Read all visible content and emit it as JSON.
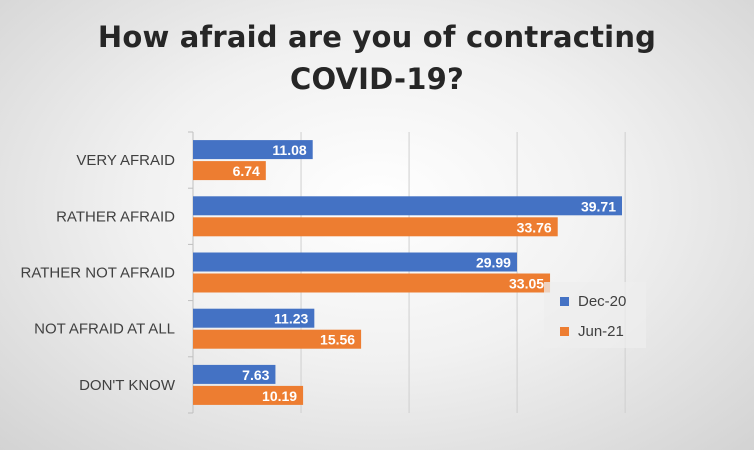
{
  "chart_data": {
    "type": "bar",
    "orientation": "horizontal",
    "title": [
      "How afraid are you of contracting",
      "COVID-19?"
    ],
    "categories": [
      "VERY AFRAID",
      "RATHER AFRAID",
      "RATHER NOT AFRAID",
      "NOT AFRAID AT ALL",
      "DON'T KNOW"
    ],
    "series": [
      {
        "name": "Dec-20",
        "color": "#4472C4",
        "values": [
          11.08,
          39.71,
          29.99,
          11.23,
          7.63
        ]
      },
      {
        "name": "Jun-21",
        "color": "#ED7D31",
        "values": [
          6.74,
          33.76,
          33.05,
          15.56,
          10.19
        ]
      }
    ],
    "xlim": [
      0,
      50
    ],
    "grid": true,
    "legend_position": "right"
  }
}
